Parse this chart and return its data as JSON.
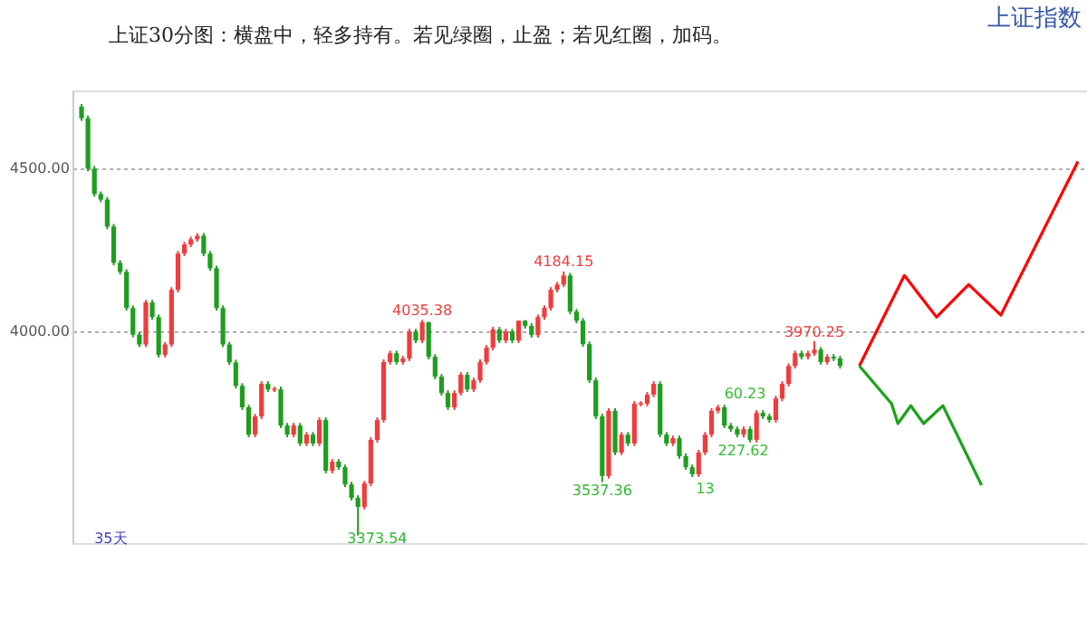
{
  "chart_data": {
    "type": "candlestick",
    "title": "上证指数",
    "subtitle": "上证30分图：横盘中，轻多持有。若见绿圈，止盈；若见红圈，加码。",
    "categories": [
      null,
      null,
      null,
      null,
      null,
      null,
      null,
      null,
      null,
      null,
      null,
      null,
      null,
      null,
      null,
      null,
      null,
      null,
      null,
      null,
      null,
      null,
      null,
      null,
      null,
      null,
      null,
      null,
      null,
      null,
      null,
      null,
      null,
      null,
      null,
      null,
      null,
      null,
      null,
      null,
      null,
      null,
      null,
      null,
      null,
      null,
      null,
      null,
      null,
      null,
      null,
      null,
      null,
      null,
      null,
      null,
      null,
      null,
      null,
      null,
      null,
      null,
      null,
      null,
      null,
      null,
      null,
      null,
      null,
      null,
      null,
      null,
      null,
      null,
      null,
      null,
      null,
      null,
      null,
      null,
      null,
      null,
      null,
      null,
      null,
      null,
      null,
      null,
      null,
      null,
      null,
      null,
      null,
      null,
      null,
      null,
      null,
      null,
      null,
      null,
      null,
      null,
      null,
      null,
      null,
      null,
      null,
      null,
      null,
      null,
      null,
      null,
      null,
      null,
      null,
      null,
      null,
      null,
      null,
      null,
      null,
      null,
      null,
      null,
      null,
      null,
      null,
      null,
      null,
      null,
      null,
      null,
      null,
      null,
      null,
      null,
      null,
      null,
      null,
      null,
      null,
      null,
      null,
      null,
      null,
      null,
      null,
      null,
      null,
      null,
      null,
      null,
      null,
      null,
      null,
      null
    ],
    "ohlc": [
      [
        4690,
        4698,
        4647,
        4655
      ],
      [
        4655,
        4663,
        4492,
        4500
      ],
      [
        4500,
        4508,
        4414,
        4422
      ],
      [
        4422,
        4430,
        4397,
        4405
      ],
      [
        4405,
        4413,
        4314,
        4322
      ],
      [
        4322,
        4330,
        4203,
        4211
      ],
      [
        4211,
        4219,
        4175,
        4183
      ],
      [
        4183,
        4191,
        4064,
        4072
      ],
      [
        4072,
        4080,
        3982,
        3990
      ],
      [
        3990,
        3998,
        3952,
        3960
      ],
      [
        3960,
        4097,
        3952,
        4089
      ],
      [
        4089,
        4097,
        4036,
        4044
      ],
      [
        4044,
        4052,
        3920,
        3928
      ],
      [
        3928,
        3968,
        3920,
        3960
      ],
      [
        3960,
        4136,
        3952,
        4128
      ],
      [
        4128,
        4247,
        4120,
        4239
      ],
      [
        4239,
        4275,
        4231,
        4267
      ],
      [
        4267,
        4291,
        4259,
        4283
      ],
      [
        4283,
        4302,
        4275,
        4294
      ],
      [
        4294,
        4302,
        4231,
        4239
      ],
      [
        4239,
        4247,
        4186,
        4194
      ],
      [
        4194,
        4202,
        4064,
        4072
      ],
      [
        4072,
        4080,
        3952,
        3960
      ],
      [
        3960,
        3968,
        3897,
        3905
      ],
      [
        3905,
        3913,
        3825,
        3833
      ],
      [
        3833,
        3841,
        3759,
        3767
      ],
      [
        3767,
        3775,
        3675,
        3683
      ],
      [
        3683,
        3747,
        3675,
        3739
      ],
      [
        3739,
        3847,
        3731,
        3839
      ],
      [
        3839,
        3847,
        3814,
        3822
      ],
      [
        3822,
        3830,
        3814,
        3822
      ],
      [
        3822,
        3830,
        3703,
        3711
      ],
      [
        3711,
        3719,
        3675,
        3683
      ],
      [
        3683,
        3719,
        3675,
        3711
      ],
      [
        3711,
        3719,
        3648,
        3656
      ],
      [
        3656,
        3691,
        3648,
        3683
      ],
      [
        3683,
        3691,
        3648,
        3656
      ],
      [
        3656,
        3736,
        3648,
        3728
      ],
      [
        3728,
        3736,
        3564,
        3572
      ],
      [
        3572,
        3608,
        3564,
        3600
      ],
      [
        3600,
        3608,
        3575,
        3583
      ],
      [
        3583,
        3591,
        3522,
        3530
      ],
      [
        3530,
        3538,
        3481,
        3489
      ],
      [
        3489,
        3497,
        3373.54,
        3461
      ],
      [
        3461,
        3541,
        3453,
        3533
      ],
      [
        3533,
        3675,
        3525,
        3667
      ],
      [
        3667,
        3736,
        3659,
        3728
      ],
      [
        3728,
        3914,
        3720,
        3906
      ],
      [
        3906,
        3941,
        3898,
        3933
      ],
      [
        3933,
        3941,
        3898,
        3906
      ],
      [
        3906,
        3925,
        3898,
        3917
      ],
      [
        3917,
        4008,
        3909,
        4000
      ],
      [
        4000,
        4008,
        3964,
        3972
      ],
      [
        3972,
        4035.38,
        3964,
        4028
      ],
      [
        4028,
        4030,
        3914,
        3922
      ],
      [
        3922,
        3930,
        3853,
        3861
      ],
      [
        3861,
        3869,
        3803,
        3811
      ],
      [
        3811,
        3819,
        3759,
        3767
      ],
      [
        3767,
        3819,
        3759,
        3811
      ],
      [
        3811,
        3875,
        3803,
        3867
      ],
      [
        3867,
        3875,
        3814,
        3822
      ],
      [
        3822,
        3858,
        3814,
        3850
      ],
      [
        3850,
        3914,
        3842,
        3906
      ],
      [
        3906,
        3958,
        3898,
        3950
      ],
      [
        3950,
        4014,
        3942,
        4006
      ],
      [
        4006,
        4014,
        3964,
        3972
      ],
      [
        3972,
        4008,
        3964,
        4000
      ],
      [
        4000,
        4008,
        3964,
        3972
      ],
      [
        3972,
        4033,
        3964,
        4033
      ],
      [
        4033,
        4035,
        4009,
        4017
      ],
      [
        4017,
        4025,
        3981,
        3989
      ],
      [
        3989,
        4052,
        3981,
        4044
      ],
      [
        4044,
        4080,
        4036,
        4072
      ],
      [
        4072,
        4136,
        4064,
        4128
      ],
      [
        4128,
        4152,
        4120,
        4144
      ],
      [
        4144,
        4184.15,
        4136,
        4172
      ],
      [
        4172,
        4180,
        4053,
        4061
      ],
      [
        4061,
        4069,
        4025,
        4033
      ],
      [
        4033,
        4041,
        3953,
        3961
      ],
      [
        3961,
        3969,
        3842,
        3850
      ],
      [
        3850,
        3858,
        3731,
        3739
      ],
      [
        3739,
        3747,
        3537.36,
        3556
      ],
      [
        3556,
        3764,
        3548,
        3756
      ],
      [
        3756,
        3764,
        3620,
        3628
      ],
      [
        3628,
        3691,
        3620,
        3683
      ],
      [
        3683,
        3691,
        3648,
        3656
      ],
      [
        3656,
        3786,
        3648,
        3778
      ],
      [
        3778,
        3786,
        3770,
        3778
      ],
      [
        3778,
        3814,
        3770,
        3806
      ],
      [
        3806,
        3847,
        3798,
        3839
      ],
      [
        3839,
        3847,
        3675,
        3683
      ],
      [
        3683,
        3691,
        3648,
        3656
      ],
      [
        3656,
        3680,
        3648,
        3672
      ],
      [
        3672,
        3680,
        3609,
        3617
      ],
      [
        3617,
        3625,
        3575,
        3583
      ],
      [
        3583,
        3591,
        3553,
        3561
      ],
      [
        3561,
        3636,
        3553,
        3628
      ],
      [
        3628,
        3691,
        3620,
        3683
      ],
      [
        3683,
        3764,
        3675,
        3756
      ],
      [
        3756,
        3775,
        3748,
        3767
      ],
      [
        3767,
        3775,
        3703,
        3711
      ],
      [
        3711,
        3719,
        3692,
        3700
      ],
      [
        3700,
        3708,
        3675,
        3683
      ],
      [
        3683,
        3708,
        3675,
        3700
      ],
      [
        3700,
        3708,
        3659,
        3667
      ],
      [
        3667,
        3758,
        3659,
        3750
      ],
      [
        3750,
        3758,
        3731,
        3739
      ],
      [
        3739,
        3747,
        3720,
        3728
      ],
      [
        3728,
        3802,
        3720,
        3794
      ],
      [
        3794,
        3847,
        3786,
        3839
      ],
      [
        3839,
        3902,
        3831,
        3894
      ],
      [
        3894,
        3941,
        3886,
        3933
      ],
      [
        3933,
        3941,
        3914,
        3922
      ],
      [
        3922,
        3941,
        3914,
        3933
      ],
      [
        3933,
        3970.25,
        3925,
        3944
      ],
      [
        3944,
        3952,
        3898,
        3906
      ],
      [
        3906,
        3930,
        3898,
        3922
      ],
      [
        3922,
        3930,
        3909,
        3917
      ],
      [
        3917,
        3925,
        3886,
        3894
      ],
      null,
      null,
      null,
      null,
      null,
      null,
      null,
      null,
      null,
      null,
      null,
      null,
      null,
      null,
      null,
      null,
      null,
      null,
      null,
      null,
      null,
      null,
      null,
      null,
      null,
      null,
      null,
      null,
      null,
      null,
      null,
      null,
      null,
      null,
      null,
      null,
      null
    ],
    "colors": [
      "#1e9e1e",
      "#1e9e1e",
      "#1e9e1e",
      "#1e9e1e",
      "#1e9e1e",
      "#1e9e1e",
      "#1e9e1e",
      "#1e9e1e",
      "#1e9e1e",
      "#1e9e1e",
      "#f03c3c",
      "#1e9e1e",
      "#1e9e1e",
      "#f03c3c",
      "#f03c3c",
      "#f03c3c",
      "#f03c3c",
      "#f03c3c",
      "#f03c3c",
      "#1e9e1e",
      "#1e9e1e",
      "#1e9e1e",
      "#1e9e1e",
      "#1e9e1e",
      "#1e9e1e",
      "#1e9e1e",
      "#1e9e1e",
      "#f03c3c",
      "#f03c3c",
      "#1e9e1e",
      "#f03c3c",
      "#1e9e1e",
      "#1e9e1e",
      "#f03c3c",
      "#1e9e1e",
      "#f03c3c",
      "#1e9e1e",
      "#f03c3c",
      "#1e9e1e",
      "#f03c3c",
      "#1e9e1e",
      "#1e9e1e",
      "#1e9e1e",
      "#1e9e1e",
      "#f03c3c",
      "#f03c3c",
      "#f03c3c",
      "#f03c3c",
      "#f03c3c",
      "#1e9e1e",
      "#f03c3c",
      "#f03c3c",
      "#1e9e1e",
      "#f03c3c",
      "#1e9e1e",
      "#1e9e1e",
      "#1e9e1e",
      "#1e9e1e",
      "#f03c3c",
      "#f03c3c",
      "#1e9e1e",
      "#f03c3c",
      "#f03c3c",
      "#f03c3c",
      "#f03c3c",
      "#1e9e1e",
      "#f03c3c",
      "#1e9e1e",
      "#f03c3c",
      "#1e9e1e",
      "#1e9e1e",
      "#f03c3c",
      "#f03c3c",
      "#f03c3c",
      "#f03c3c",
      "#f03c3c",
      "#1e9e1e",
      "#1e9e1e",
      "#1e9e1e",
      "#1e9e1e",
      "#1e9e1e",
      "#1e9e1e",
      "#f03c3c",
      "#1e9e1e",
      "#f03c3c",
      "#1e9e1e",
      "#f03c3c",
      "#f03c3c",
      "#f03c3c",
      "#f03c3c",
      "#1e9e1e",
      "#1e9e1e",
      "#f03c3c",
      "#1e9e1e",
      "#1e9e1e",
      "#1e9e1e",
      "#f03c3c",
      "#f03c3c",
      "#f03c3c",
      "#f03c3c",
      "#1e9e1e",
      "#1e9e1e",
      "#1e9e1e",
      "#f03c3c",
      "#1e9e1e",
      "#f03c3c",
      "#1e9e1e",
      "#1e9e1e",
      "#f03c3c",
      "#f03c3c",
      "#f03c3c",
      "#f03c3c",
      "#1e9e1e",
      "#f03c3c",
      "#f03c3c",
      "#1e9e1e",
      "#f03c3c",
      "#1e9e1e",
      "#1e9e1e",
      null,
      null,
      null,
      null,
      null,
      null,
      null,
      null,
      null,
      null,
      null,
      null,
      null,
      null,
      null,
      null,
      null,
      null,
      null,
      null,
      null,
      null,
      null,
      null,
      null,
      null,
      null,
      null,
      null,
      null,
      null,
      null,
      null,
      null,
      null,
      null,
      null
    ],
    "series": [
      {
        "type": "line",
        "color": "#ff0000",
        "values": [
          null,
          null,
          null,
          null,
          null,
          null,
          null,
          null,
          null,
          null,
          null,
          null,
          null,
          null,
          null,
          null,
          null,
          null,
          null,
          null,
          null,
          null,
          null,
          null,
          null,
          null,
          null,
          null,
          null,
          null,
          null,
          null,
          null,
          null,
          null,
          null,
          null,
          null,
          null,
          null,
          null,
          null,
          null,
          null,
          null,
          null,
          null,
          null,
          null,
          null,
          null,
          null,
          null,
          null,
          null,
          null,
          null,
          null,
          null,
          null,
          null,
          null,
          null,
          null,
          null,
          null,
          null,
          null,
          null,
          null,
          null,
          null,
          null,
          null,
          null,
          null,
          null,
          null,
          null,
          null,
          null,
          null,
          null,
          null,
          null,
          null,
          null,
          null,
          null,
          null,
          null,
          null,
          null,
          null,
          null,
          null,
          null,
          null,
          null,
          null,
          null,
          null,
          null,
          null,
          null,
          null,
          null,
          null,
          null,
          null,
          null,
          null,
          null,
          null,
          null,
          null,
          null,
          null,
          null,
          null,
          null,
          3894,
          null,
          null,
          null,
          null,
          null,
          null,
          4172,
          null,
          null,
          null,
          null,
          4044,
          null,
          null,
          null,
          null,
          4144,
          null,
          null,
          null,
          null,
          4050,
          null,
          null,
          null,
          null,
          null,
          null,
          null,
          null,
          null,
          null,
          null,
          4522
        ]
      },
      {
        "type": "line",
        "color": "#1aa31a",
        "values": [
          null,
          null,
          null,
          null,
          null,
          null,
          null,
          null,
          null,
          null,
          null,
          null,
          null,
          null,
          null,
          null,
          null,
          null,
          null,
          null,
          null,
          null,
          null,
          null,
          null,
          null,
          null,
          null,
          null,
          null,
          null,
          null,
          null,
          null,
          null,
          null,
          null,
          null,
          null,
          null,
          null,
          null,
          null,
          null,
          null,
          null,
          null,
          null,
          null,
          null,
          null,
          null,
          null,
          null,
          null,
          null,
          null,
          null,
          null,
          null,
          null,
          null,
          null,
          null,
          null,
          null,
          null,
          null,
          null,
          null,
          null,
          null,
          null,
          null,
          null,
          null,
          null,
          null,
          null,
          null,
          null,
          null,
          null,
          null,
          null,
          null,
          null,
          null,
          null,
          null,
          null,
          null,
          null,
          null,
          null,
          null,
          null,
          null,
          null,
          null,
          null,
          null,
          null,
          null,
          null,
          null,
          null,
          null,
          null,
          null,
          null,
          null,
          null,
          null,
          null,
          null,
          null,
          null,
          null,
          null,
          null,
          3894,
          null,
          null,
          null,
          null,
          3778,
          3717,
          null,
          3772,
          null,
          3717,
          null,
          null,
          3772,
          null,
          null,
          null,
          null,
          null,
          3528,
          null,
          null,
          null,
          null,
          null,
          null,
          null,
          null,
          null,
          null,
          null,
          null,
          null,
          null,
          null
        ]
      }
    ],
    "annotations": [
      "4035.38",
      "4184.15",
      "3537.36",
      "3373.54",
      "3970.25",
      "35天",
      "60.23",
      "227.62",
      "13"
    ],
    "ylim": [
      3350,
      4740
    ],
    "yticks": [
      {
        "value": 4000,
        "label": "4000.00"
      },
      {
        "value": 4500,
        "label": "4500.00"
      }
    ],
    "grid": "y",
    "tick_labels": "y"
  }
}
